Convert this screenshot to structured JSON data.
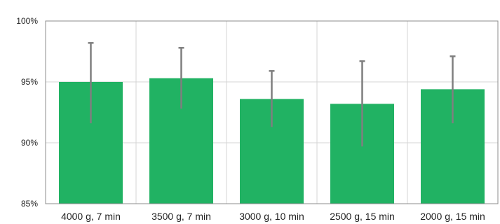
{
  "chart_data": {
    "type": "bar",
    "title": "",
    "xlabel": "",
    "ylabel": "",
    "categories": [
      "4000 g, 7 min",
      "3500 g, 7 min",
      "3000 g, 10 min",
      "2500 g, 15 min",
      "2000 g, 15 min"
    ],
    "values": [
      95.0,
      95.3,
      93.6,
      93.2,
      94.4
    ],
    "error_low": [
      91.6,
      92.8,
      91.3,
      89.7,
      91.6
    ],
    "error_high": [
      98.2,
      97.8,
      95.9,
      96.7,
      97.1
    ],
    "ylim": [
      85,
      100
    ],
    "y_ticks": [
      85,
      90,
      95,
      100
    ],
    "y_tick_labels": [
      "85%",
      "90%",
      "95%",
      "100%"
    ],
    "grid": true,
    "legend": "none",
    "colors": {
      "bar": "#21b263",
      "error_bar": "#7f7f7f",
      "grid": "#d4d4d4",
      "frame": "#8c8c8c"
    }
  }
}
